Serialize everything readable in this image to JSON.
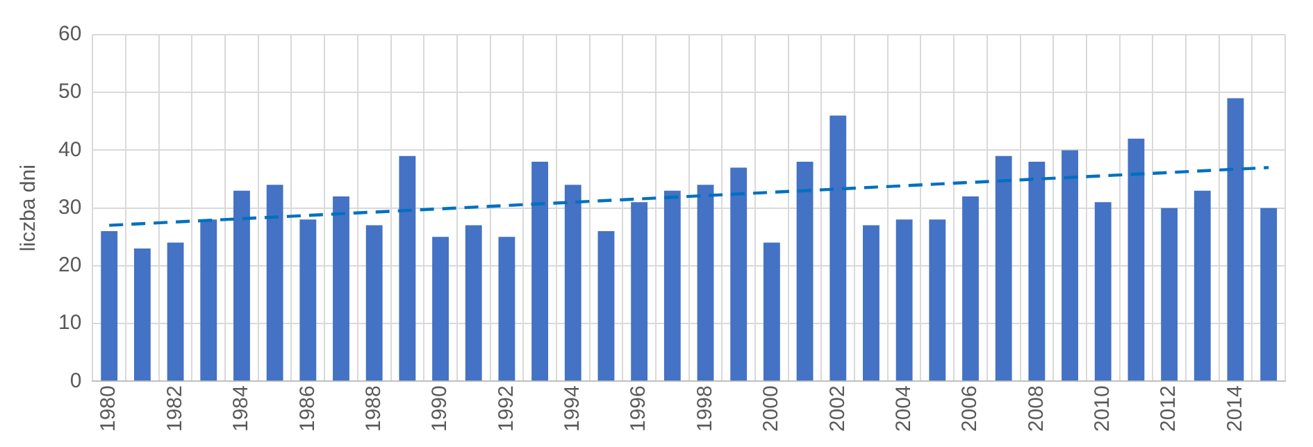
{
  "chart_data": {
    "type": "bar",
    "ylabel": "liczba dni",
    "categories": [
      "1980",
      null,
      "1982",
      null,
      "1984",
      null,
      "1986",
      null,
      "1988",
      null,
      "1990",
      null,
      "1992",
      null,
      "1994",
      null,
      "1996",
      null,
      "1998",
      null,
      "2000",
      null,
      "2002",
      null,
      "2004",
      null,
      "2006",
      null,
      "2008",
      null,
      "2010",
      null,
      "2012",
      null,
      "2014",
      null
    ],
    "series": [
      {
        "color": "#4472c4",
        "values": [
          26,
          23,
          24,
          28,
          33,
          34,
          28,
          32,
          27,
          39,
          25,
          27,
          25,
          38,
          34,
          26,
          31,
          33,
          34,
          37,
          24,
          38,
          46,
          27,
          28,
          28,
          32,
          39,
          38,
          40,
          31,
          42,
          30,
          33,
          49,
          30
        ]
      },
      {
        "type": "line",
        "color": "#0070c0",
        "line_style": "dashed",
        "marker": "none",
        "values": [
          27,
          null,
          null,
          null,
          null,
          null,
          null,
          null,
          null,
          null,
          null,
          null,
          null,
          null,
          null,
          null,
          null,
          null,
          null,
          null,
          null,
          null,
          null,
          null,
          null,
          null,
          null,
          null,
          null,
          null,
          null,
          null,
          null,
          null,
          null,
          37
        ]
      }
    ],
    "ylim": [
      0,
      60
    ],
    "yticks": [
      0,
      10,
      20,
      30,
      40,
      50,
      60
    ],
    "grid": true,
    "legend": false
  }
}
